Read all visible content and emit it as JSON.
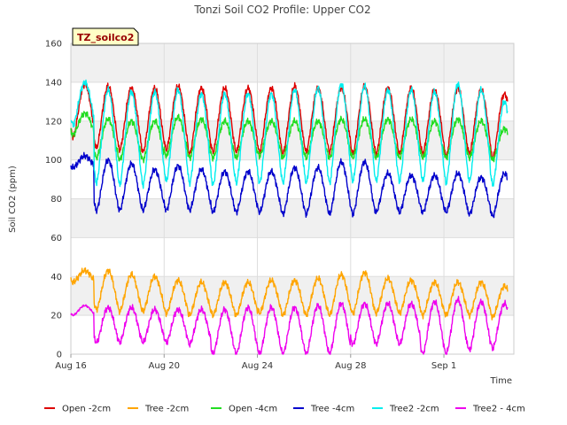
{
  "chart_data": {
    "type": "line",
    "title": "Tonzi Soil CO2 Profile: Upper CO2",
    "badge": "TZ_soilco2",
    "xlabel": "Time",
    "ylabel": "Soil CO2 (ppm)",
    "ylim": [
      0,
      160
    ],
    "yticks": [
      0,
      20,
      40,
      60,
      80,
      100,
      120,
      140,
      160
    ],
    "xlim": [
      "2024-08-16",
      "2024-09-04"
    ],
    "xticks": [
      {
        "label": "Aug 16",
        "date": "2024-08-16"
      },
      {
        "label": "Aug 20",
        "date": "2024-08-20"
      },
      {
        "label": "Aug 24",
        "date": "2024-08-24"
      },
      {
        "label": "Aug 28",
        "date": "2024-08-28"
      },
      {
        "label": "Sep 1",
        "date": "2024-09-01"
      }
    ],
    "grid": true,
    "legend_position": "bottom",
    "x": [
      "2024-08-16",
      "2024-08-17",
      "2024-08-18",
      "2024-08-19",
      "2024-08-20",
      "2024-08-21",
      "2024-08-22",
      "2024-08-23",
      "2024-08-24",
      "2024-08-25",
      "2024-08-26",
      "2024-08-27",
      "2024-08-28",
      "2024-08-29",
      "2024-08-30",
      "2024-08-31",
      "2024-09-01",
      "2024-09-02",
      "2024-09-03"
    ],
    "series": [
      {
        "name": "Open -2cm",
        "color": "#dd0000",
        "daily_max": [
          139,
          138,
          137,
          137,
          138,
          137,
          137,
          137,
          137,
          138,
          137,
          137,
          138,
          137,
          137,
          136,
          137,
          136,
          134
        ],
        "daily_min": [
          112,
          106,
          105,
          104,
          105,
          103,
          104,
          104,
          104,
          103,
          104,
          104,
          103,
          103,
          103,
          103,
          102,
          103,
          101
        ]
      },
      {
        "name": "Tree -2cm",
        "color": "#ffa500",
        "daily_max": [
          43,
          43,
          41,
          40,
          38,
          37,
          37,
          37,
          38,
          38,
          39,
          41,
          42,
          39,
          38,
          37,
          37,
          37,
          35
        ],
        "daily_min": [
          37,
          23,
          22,
          22,
          21,
          20,
          20,
          20,
          21,
          20,
          20,
          20,
          21,
          21,
          21,
          20,
          20,
          20,
          19
        ]
      },
      {
        "name": "Open -4cm",
        "color": "#22dd22",
        "daily_max": [
          124,
          121,
          120,
          120,
          122,
          121,
          120,
          120,
          120,
          120,
          120,
          121,
          121,
          121,
          121,
          120,
          121,
          120,
          116
        ],
        "daily_min": [
          113,
          101,
          100,
          100,
          102,
          101,
          101,
          101,
          102,
          101,
          101,
          101,
          101,
          101,
          101,
          101,
          101,
          101,
          100
        ]
      },
      {
        "name": "Tree -4cm",
        "color": "#0000cc",
        "daily_max": [
          102,
          100,
          98,
          95,
          97,
          95,
          94,
          94,
          94,
          96,
          96,
          99,
          99,
          93,
          92,
          92,
          93,
          91,
          93
        ],
        "daily_min": [
          96,
          74,
          74,
          74,
          74,
          74,
          73,
          73,
          73,
          72,
          72,
          72,
          72,
          73,
          73,
          73,
          73,
          72,
          71
        ]
      },
      {
        "name": "Tree2 -2cm",
        "color": "#00eeee",
        "daily_max": [
          140,
          136,
          135,
          135,
          136,
          134,
          134,
          134,
          134,
          136,
          137,
          139,
          138,
          136,
          136,
          135,
          139,
          136,
          130
        ],
        "daily_min": [
          118,
          88,
          87,
          87,
          89,
          88,
          87,
          88,
          88,
          88,
          88,
          88,
          89,
          89,
          89,
          89,
          88,
          89,
          87
        ]
      },
      {
        "name": "Tree2 - 4cm",
        "color": "#ee00ee",
        "daily_max": [
          25,
          24,
          24,
          23,
          23,
          23,
          23,
          24,
          24,
          24,
          25,
          26,
          26,
          26,
          26,
          27,
          28,
          27,
          26
        ],
        "daily_min": [
          20,
          6,
          6,
          6,
          6,
          5,
          0,
          0,
          0,
          0,
          0,
          0,
          5,
          5,
          5,
          0,
          0,
          2,
          3
        ]
      }
    ]
  }
}
